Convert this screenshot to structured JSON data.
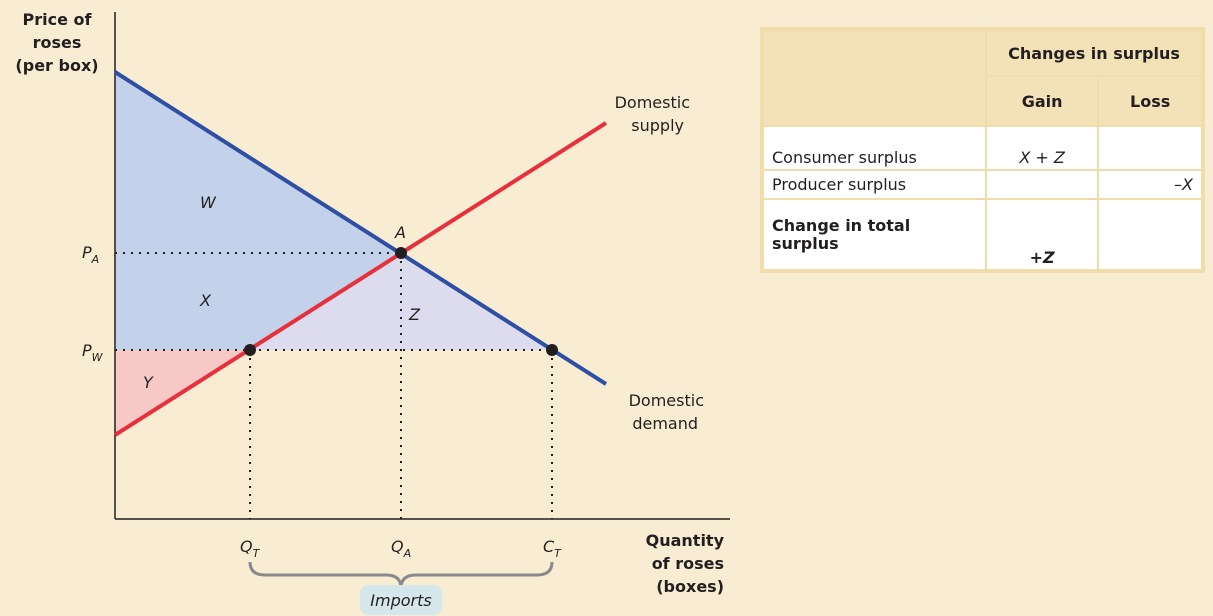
{
  "axes": {
    "y_label": [
      "Price of",
      "roses",
      "(per box)"
    ],
    "x_label": [
      "Quantity",
      "of roses",
      "(boxes)"
    ]
  },
  "curves": {
    "supply": [
      "Domestic",
      "supply"
    ],
    "demand": [
      "Domestic",
      "demand"
    ]
  },
  "regions": {
    "w": "W",
    "x": "X",
    "y": "Y",
    "z": "Z"
  },
  "points": {
    "a": "A"
  },
  "ticks": {
    "pa": {
      "main": "P",
      "sub": "A"
    },
    "pw": {
      "main": "P",
      "sub": "W"
    },
    "qt": {
      "main": "Q",
      "sub": "T"
    },
    "qa": {
      "main": "Q",
      "sub": "A"
    },
    "ct": {
      "main": "C",
      "sub": "T"
    }
  },
  "brace_label": "Imports",
  "table": {
    "header": "Changes in surplus",
    "columns": [
      "Gain",
      "Loss"
    ],
    "rows": [
      [
        "Consumer surplus",
        "X + Z",
        ""
      ],
      [
        "Producer surplus",
        "",
        "–X"
      ],
      [
        "Change in total surplus",
        "+Z",
        ""
      ]
    ]
  }
}
